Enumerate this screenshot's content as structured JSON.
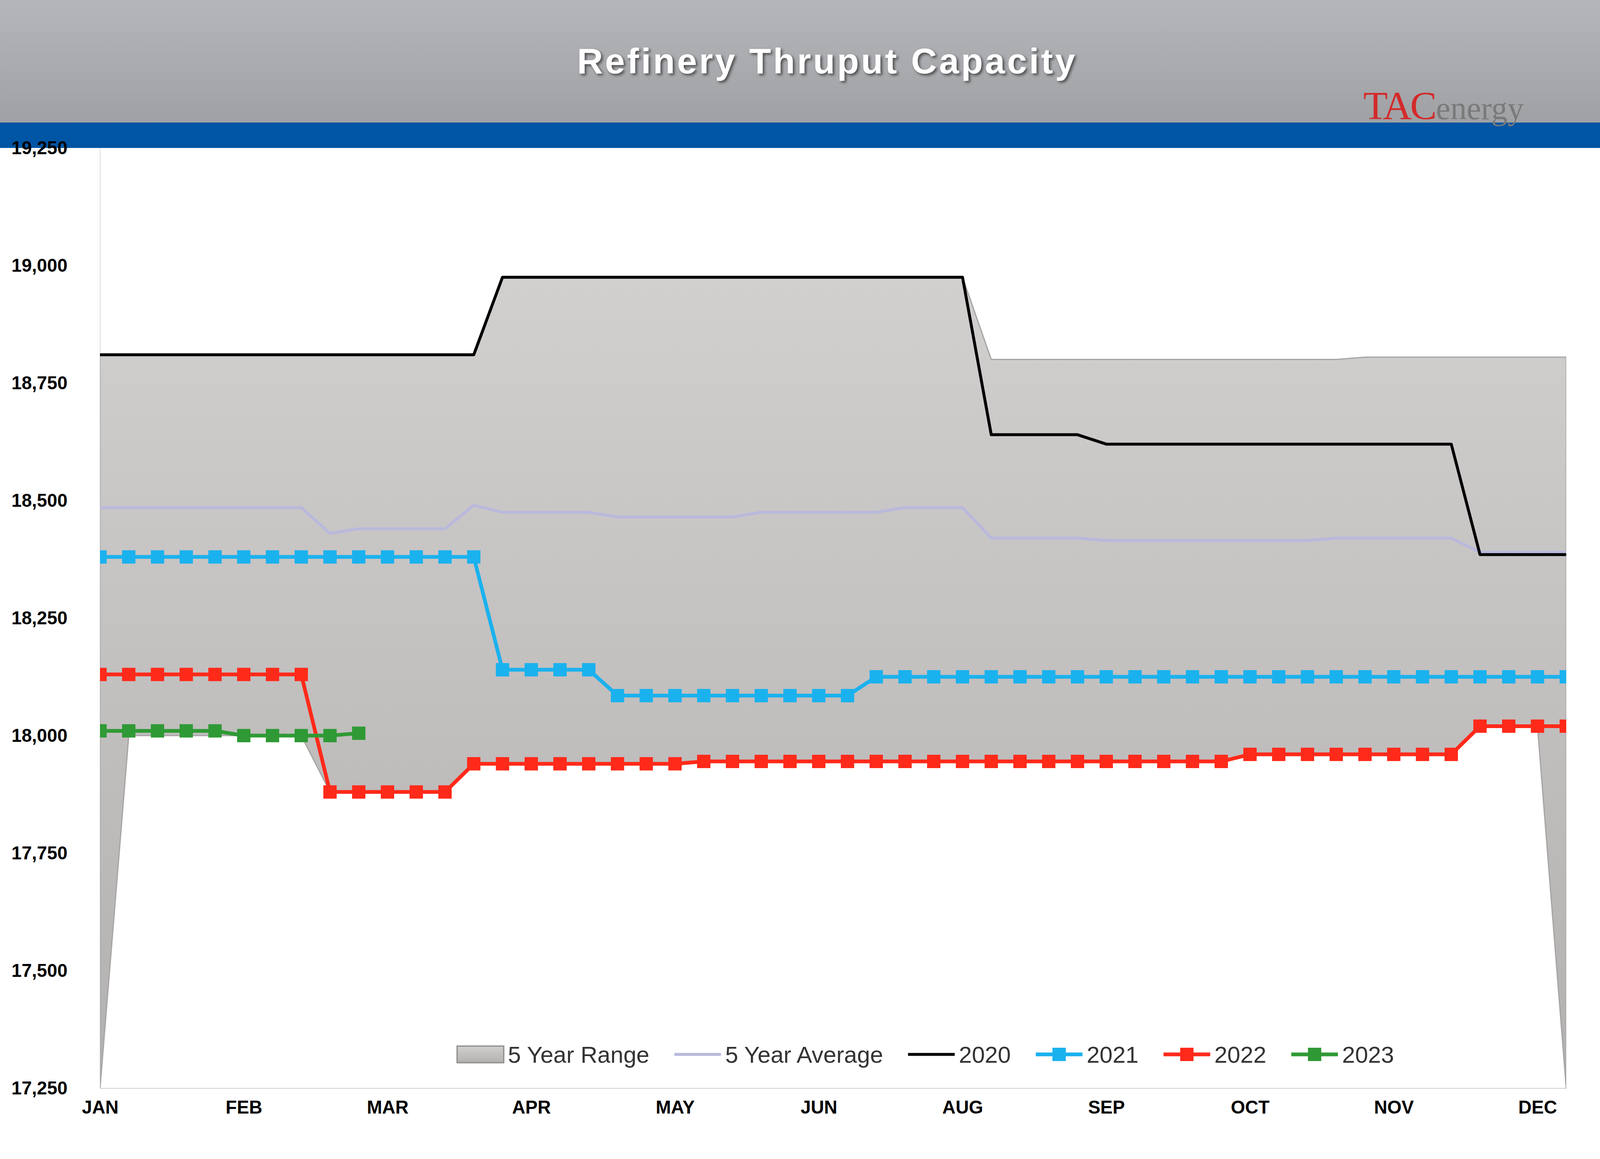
{
  "chart_data": {
    "type": "line",
    "title": "Refinery Thruput Capacity",
    "annotations": [
      "TAC",
      "energy"
    ],
    "categories": [
      "JAN",
      null,
      null,
      null,
      null,
      "FEB",
      null,
      null,
      null,
      null,
      "MAR",
      null,
      null,
      null,
      null,
      "APR",
      null,
      null,
      null,
      null,
      "MAY",
      null,
      null,
      null,
      null,
      "JUN",
      null,
      null,
      null,
      null,
      "AUG",
      null,
      null,
      null,
      null,
      "SEP",
      null,
      null,
      null,
      null,
      "OCT",
      null,
      null,
      null,
      null,
      "NOV",
      null,
      null,
      null,
      null,
      "DEC",
      null
    ],
    "ylim": [
      17250,
      19250
    ],
    "yticks": [
      {
        "value": 17250,
        "label": "17,250"
      },
      {
        "value": 17500,
        "label": "17,500"
      },
      {
        "value": 17750,
        "label": "17,750"
      },
      {
        "value": 18000,
        "label": "18,000"
      },
      {
        "value": 18250,
        "label": "18,250"
      },
      {
        "value": 18500,
        "label": "18,500"
      },
      {
        "value": 18750,
        "label": "18,750"
      },
      {
        "value": 19000,
        "label": "19,000"
      },
      {
        "value": 19250,
        "label": "19,250"
      }
    ],
    "grid": false,
    "legend": "bottom",
    "series": [
      {
        "name": "5 Year Range",
        "type": "area",
        "color": "#c4c1c1",
        "values": [
          18810,
          18810,
          18810,
          18810,
          18810,
          18810,
          18810,
          18810,
          18810,
          18810,
          18810,
          18810,
          18810,
          18810,
          18975,
          18975,
          18975,
          18975,
          18975,
          18975,
          18975,
          18975,
          18975,
          18975,
          18975,
          18975,
          18975,
          18975,
          18975,
          18975,
          18975,
          18800,
          18800,
          18800,
          18800,
          18800,
          18800,
          18800,
          18800,
          18800,
          18800,
          18800,
          18800,
          18800,
          18805,
          18805,
          18805,
          18805,
          18805,
          18805,
          18805,
          18805
        ],
        "lower": [
          17250,
          18000,
          18000,
          18000,
          18000,
          18000,
          18000,
          18000,
          17880,
          17880,
          17880,
          17880,
          17880,
          17940,
          17940,
          17940,
          17940,
          17940,
          17940,
          17940,
          17940,
          17945,
          17945,
          17945,
          17945,
          17945,
          17945,
          17945,
          17945,
          17945,
          17945,
          17945,
          17945,
          17945,
          17945,
          17945,
          17945,
          17945,
          17945,
          17945,
          17960,
          17960,
          17960,
          17960,
          17960,
          17960,
          17960,
          17960,
          18020,
          18020,
          18020,
          17250
        ]
      },
      {
        "name": "5 Year Average",
        "type": "line",
        "color": "#b9b9dc",
        "values": [
          18485,
          18485,
          18485,
          18485,
          18485,
          18485,
          18485,
          18485,
          18430,
          18440,
          18440,
          18440,
          18440,
          18490,
          18475,
          18475,
          18475,
          18475,
          18465,
          18465,
          18465,
          18465,
          18465,
          18475,
          18475,
          18475,
          18475,
          18475,
          18485,
          18485,
          18485,
          18420,
          18420,
          18420,
          18420,
          18415,
          18415,
          18415,
          18415,
          18415,
          18415,
          18415,
          18415,
          18420,
          18420,
          18420,
          18420,
          18420,
          18390,
          18390,
          18390,
          18390
        ]
      },
      {
        "name": "2020",
        "type": "line",
        "color": "#000000",
        "values": [
          18810,
          18810,
          18810,
          18810,
          18810,
          18810,
          18810,
          18810,
          18810,
          18810,
          18810,
          18810,
          18810,
          18810,
          18975,
          18975,
          18975,
          18975,
          18975,
          18975,
          18975,
          18975,
          18975,
          18975,
          18975,
          18975,
          18975,
          18975,
          18975,
          18975,
          18975,
          18640,
          18640,
          18640,
          18640,
          18620,
          18620,
          18620,
          18620,
          18620,
          18620,
          18620,
          18620,
          18620,
          18620,
          18620,
          18620,
          18620,
          18385,
          18385,
          18385,
          18385
        ]
      },
      {
        "name": "2021",
        "type": "line",
        "color": "#1ab2ee",
        "marker": "square",
        "values": [
          18380,
          18380,
          18380,
          18380,
          18380,
          18380,
          18380,
          18380,
          18380,
          18380,
          18380,
          18380,
          18380,
          18380,
          18140,
          18140,
          18140,
          18140,
          18085,
          18085,
          18085,
          18085,
          18085,
          18085,
          18085,
          18085,
          18085,
          18125,
          18125,
          18125,
          18125,
          18125,
          18125,
          18125,
          18125,
          18125,
          18125,
          18125,
          18125,
          18125,
          18125,
          18125,
          18125,
          18125,
          18125,
          18125,
          18125,
          18125,
          18125,
          18125,
          18125,
          18125
        ]
      },
      {
        "name": "2022",
        "type": "line",
        "color": "#ff2a1a",
        "marker": "square",
        "values": [
          18130,
          18130,
          18130,
          18130,
          18130,
          18130,
          18130,
          18130,
          17880,
          17880,
          17880,
          17880,
          17880,
          17940,
          17940,
          17940,
          17940,
          17940,
          17940,
          17940,
          17940,
          17945,
          17945,
          17945,
          17945,
          17945,
          17945,
          17945,
          17945,
          17945,
          17945,
          17945,
          17945,
          17945,
          17945,
          17945,
          17945,
          17945,
          17945,
          17945,
          17960,
          17960,
          17960,
          17960,
          17960,
          17960,
          17960,
          17960,
          18020,
          18020,
          18020,
          18020
        ]
      },
      {
        "name": "2023",
        "type": "line",
        "color": "#2f9a35",
        "marker": "square",
        "values": [
          18010,
          18010,
          18010,
          18010,
          18010,
          18000,
          18000,
          18000,
          18000,
          18005,
          null,
          null,
          null,
          null,
          null,
          null,
          null,
          null,
          null,
          null,
          null,
          null,
          null,
          null,
          null,
          null,
          null,
          null,
          null,
          null,
          null,
          null,
          null,
          null,
          null,
          null,
          null,
          null,
          null,
          null,
          null,
          null,
          null,
          null,
          null,
          null,
          null,
          null,
          null,
          null,
          null,
          null
        ]
      }
    ]
  }
}
